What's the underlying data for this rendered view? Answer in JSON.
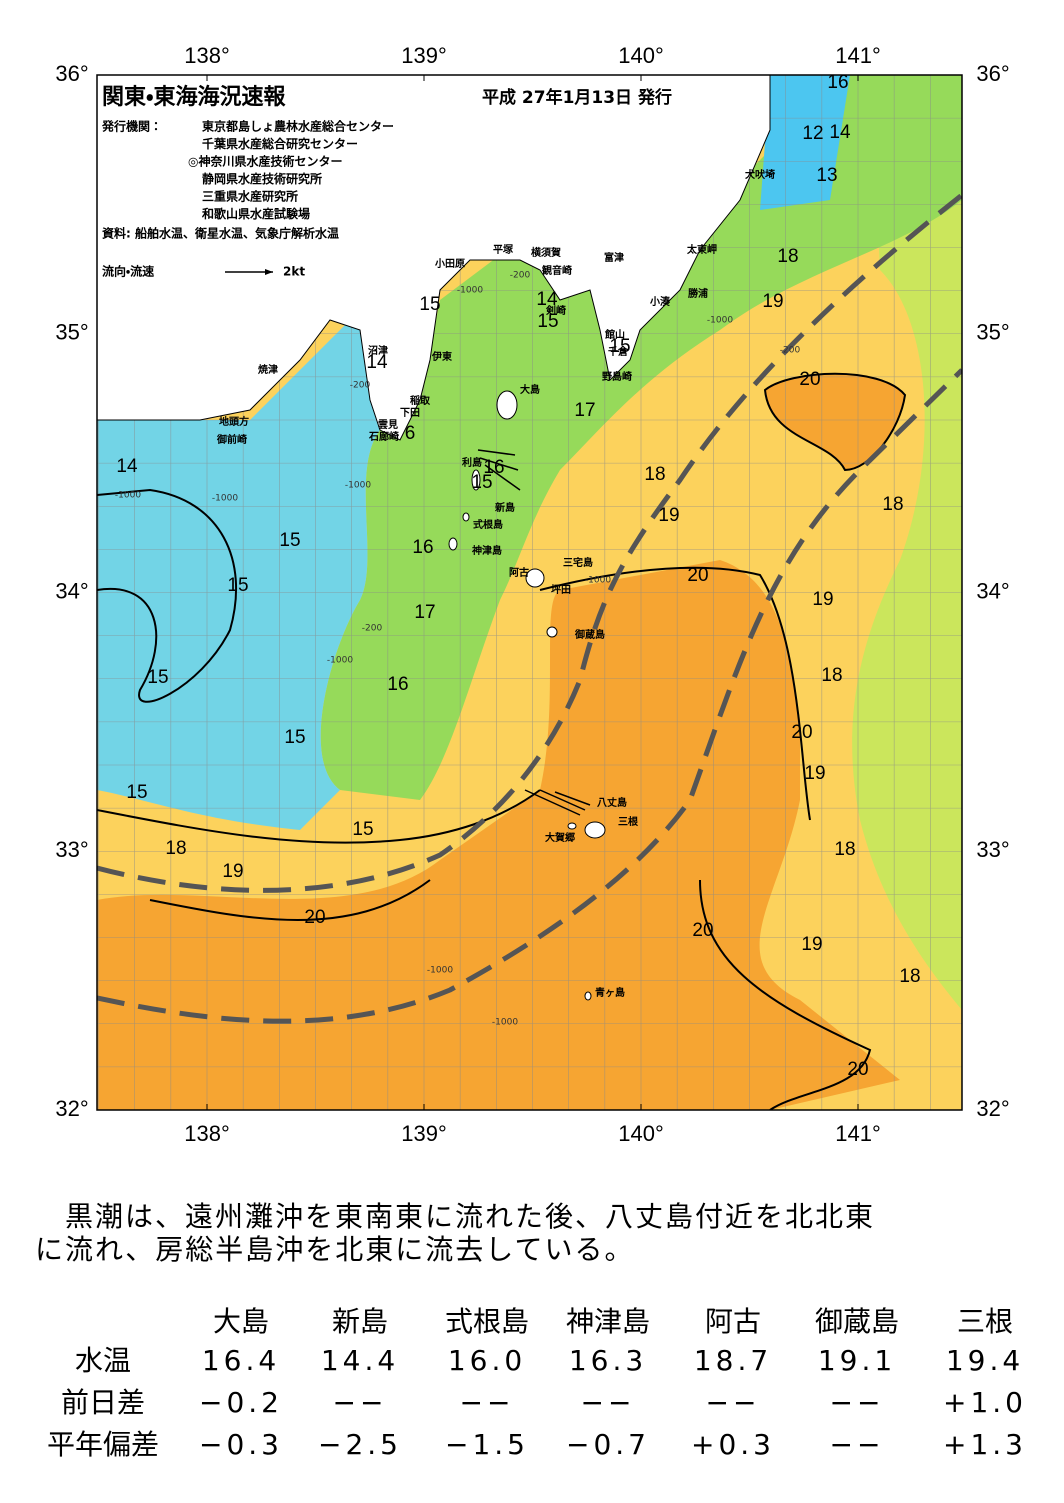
{
  "header": {
    "title": "関東・東海海況速報",
    "date": "平成 27年1月13日 発行",
    "issuer_label": "発行機関：",
    "issuers": [
      "東京都島しょ農林水産総合センター",
      "千葉県水産総合研究センター",
      "◎神奈川県水産技術センター",
      "静岡県水産技術研究所",
      "三重県水産研究所",
      "和歌山県水産試験場"
    ],
    "source": "資料: 船舶水温、衛星水温、気象庁解析水温",
    "legend": "流向・流速",
    "legend_scale": "2kt"
  },
  "map": {
    "lon_labels": [
      "138°",
      "139°",
      "140°",
      "141°"
    ],
    "lat_labels": [
      "36°",
      "35°",
      "34°",
      "33°",
      "32°"
    ],
    "places": [
      "犬吠埼",
      "太東岬",
      "勝浦",
      "小湊",
      "富津",
      "横須賀",
      "観音崎",
      "平塚",
      "小田原",
      "剣崎",
      "館山",
      "千倉",
      "野島崎",
      "沼津",
      "伊東",
      "稲取",
      "下田",
      "雲見",
      "石廊崎",
      "焼津",
      "地頭方",
      "御前崎",
      "大島",
      "利島",
      "新島",
      "式根島",
      "神津島",
      "三宅島",
      "阿古",
      "坪田",
      "御蔵島",
      "八丈島",
      "三根",
      "大賀郷",
      "青ヶ島"
    ],
    "contour_labels": [
      "16",
      "12",
      "14",
      "13",
      "18",
      "19",
      "15",
      "14",
      "15",
      "15",
      "14",
      "20",
      "17",
      "6",
      "14",
      "16",
      "15",
      "18",
      "19",
      "18",
      "15",
      "16",
      "20",
      "15",
      "19",
      "17",
      "15",
      "16",
      "18",
      "20",
      "15",
      "19",
      "15",
      "15",
      "18",
      "18",
      "19",
      "20",
      "20",
      "19",
      "18",
      "20"
    ],
    "depth_labels": [
      "-1000",
      "-200",
      "-1000",
      "-200",
      "-1000",
      "-1000",
      "-200",
      "-1000",
      "-1000",
      "-1000",
      "-200",
      "-1000",
      "-1000"
    ]
  },
  "summary": [
    "　黒潮は、遠州灘沖を東南東に流れた後、八丈島付近を北北東",
    "に流れ、房総半島沖を北東に流去している。"
  ],
  "table": {
    "columns": [
      "大島",
      "新島",
      "式根島",
      "神津島",
      "阿古",
      "御蔵島",
      "三根"
    ],
    "rows": [
      {
        "label": "水温",
        "cells": [
          "16.4",
          "14.4",
          "16.0",
          "16.3",
          "18.7",
          "19.1",
          "19.4"
        ]
      },
      {
        "label": "前日差",
        "cells": [
          "−0.2",
          "−−",
          "−−",
          "−−",
          "−−",
          "−−",
          "+1.0"
        ]
      },
      {
        "label": "平年偏差",
        "cells": [
          "−0.3",
          "−2.5",
          "−1.5",
          "−0.7",
          "+0.3",
          "−−",
          "+1.3"
        ]
      }
    ]
  }
}
